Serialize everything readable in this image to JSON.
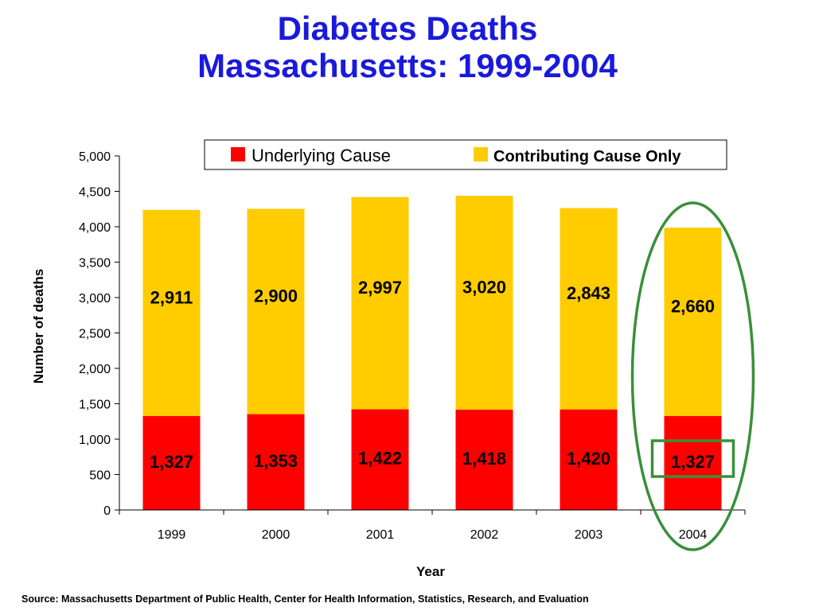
{
  "title_line1": "Diabetes Deaths",
  "title_line2": "Massachusetts: 1999-2004",
  "source": "Source:  Massachusetts Department of Public Health, Center for Health Information, Statistics, Research, and Evaluation",
  "colors": {
    "title": "#1a1adc",
    "underlying": "#ff0000",
    "contributing": "#ffcc00",
    "highlight": "#3a8f3a"
  },
  "chart_data": {
    "type": "bar",
    "stacked": true,
    "categories": [
      "1999",
      "2000",
      "2001",
      "2002",
      "2003",
      "2004"
    ],
    "series": [
      {
        "name": "Underlying Cause",
        "values": [
          1327,
          1353,
          1422,
          1418,
          1420,
          1327
        ],
        "labels": [
          "1,327",
          "1,353",
          "1,422",
          "1,418",
          "1,420",
          "1,327"
        ]
      },
      {
        "name": "Contributing Cause Only",
        "values": [
          2911,
          2900,
          2997,
          3020,
          2843,
          2660
        ],
        "labels": [
          "2,911",
          "2,900",
          "2,997",
          "3,020",
          "2,843",
          "2,660"
        ]
      }
    ],
    "xlabel": "Year",
    "ylabel": "Number of deaths",
    "ylim": [
      0,
      5000
    ],
    "yticks": [
      0,
      500,
      1000,
      1500,
      2000,
      2500,
      3000,
      3500,
      4000,
      4500,
      5000
    ],
    "ytick_labels": [
      "0",
      "500",
      "1,000",
      "1,500",
      "2,000",
      "2,500",
      "3,000",
      "3,500",
      "4,000",
      "4,500",
      "5,000"
    ],
    "grid": false,
    "legend_position": "top-right",
    "highlight": "2004"
  }
}
